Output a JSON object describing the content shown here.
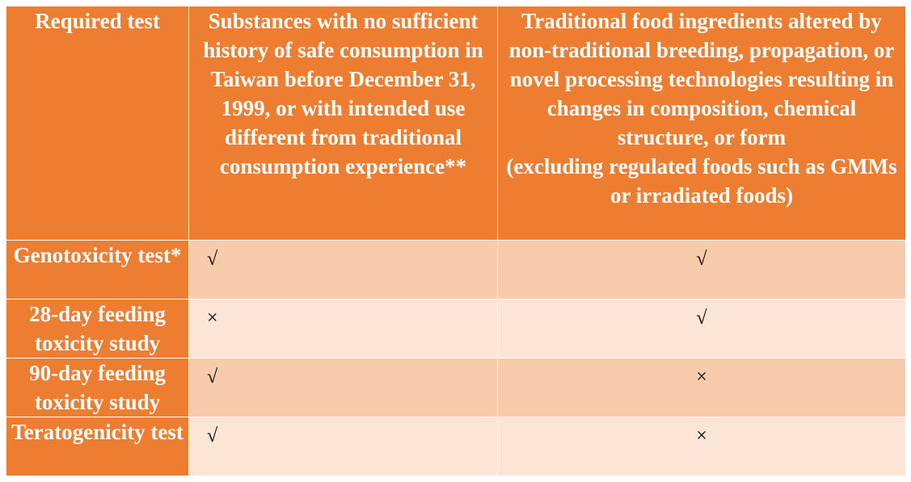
{
  "table": {
    "header": [
      "Required test",
      "Substances with no sufficient history of safe consumption in Taiwan before December 31, 1999, or with intended use different from traditional consumption experience**",
      {
        "text": "Traditional food ingredients altered by non-traditional breeding, propagation, or novel processing technologies resulting in changes in composition, chemical structure, or form",
        "note": "(excluding regulated foods such as GMMs or irradiated foods)"
      }
    ],
    "rows": [
      [
        "Genotoxicity test*",
        "√",
        "√"
      ],
      [
        "28-day feeding toxicity study",
        "×",
        "√"
      ],
      [
        "90-day feeding toxicity study",
        "√",
        "×"
      ],
      [
        "Teratogenicity test",
        "√",
        "×"
      ]
    ]
  }
}
